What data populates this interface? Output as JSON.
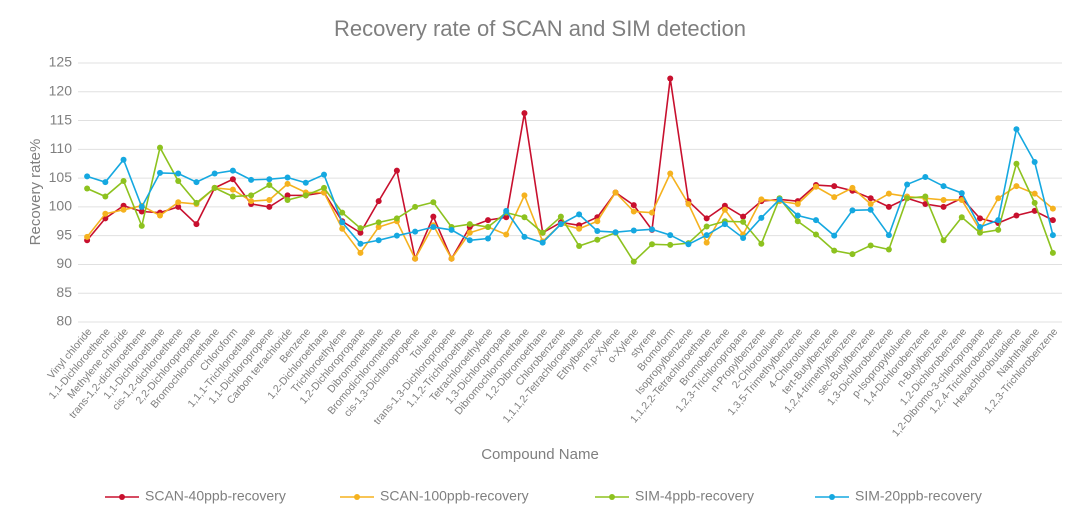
{
  "chart_data": {
    "type": "line",
    "title": "Recovery rate of SCAN and SIM detection",
    "x_label": "Compound Name",
    "y_label": "Recovery rate%",
    "categories": [
      "Vinyl chloride",
      "1,1-Dichloroethene",
      "Methylene chloride",
      "trans-1,2-dichloroethene",
      "1,1-Dichloroethane",
      "cis-1,2-dichloroethene",
      "2,2-Dichloropropane",
      "Bromochloromethane",
      "Chloroform",
      "1,1,1-Trichloroethane",
      "1,1-Dichloropropene",
      "Carbon tetrachloride",
      "Benzene",
      "1,2-Dichloroethane",
      "Trichloroethylene",
      "1,2-Dichloropropane",
      "Dibromomethane",
      "Bromodichloromethane",
      "cis-1,3-Dichloropropene",
      "Toluene",
      "trans-1,3-Dichloropropene",
      "1,1,2-Trichloroethane",
      "Tetrachloroethylene",
      "1,3-Dichloropropane",
      "Dibromochloromethane",
      "1,2-Dibromoethane",
      "Chlorobenzene",
      "1,1,1,2-Tetrachloroethane",
      "Ethylbenzene",
      "m,p-Xylene",
      "o-Xylene",
      "styrene",
      "Bromoform",
      "Isopropylbenzene",
      "1,1,2,2-Tetrachloroethane",
      "Bromobenzene",
      "1,2,3-Trichloropropane",
      "n-Propylbenzene",
      "2-Chlorotoluene",
      "1,3,5-Trimethylbenzene",
      "4-Chlorotoluene",
      "tert-Butylbenzene",
      "1,2,4-trimethylbenzene",
      "sec-Butylbenzene",
      "1,3-Dichlorobenzene",
      "p-Isopropyltoluene",
      "1,4-Dichlorobenzene",
      "n-Butylbenzene",
      "1,2-Dichlorobenzene",
      "1,2-Dibromo-3-chloropropane",
      "1,2,4-Trichlorobenzene",
      "Hexachlorobutadiene",
      "Naphthalene",
      "1,2,3-Trichlorobenzene"
    ],
    "series": [
      {
        "name": "SCAN-40ppb-recovery",
        "color": "#c8102e",
        "values": [
          94.2,
          98,
          100.2,
          99.2,
          99,
          100,
          97,
          103.3,
          104.8,
          100.5,
          100,
          102,
          102,
          102.5,
          97.5,
          95.5,
          101,
          106.3,
          91,
          98.3,
          91,
          96.5,
          97.7,
          98.2,
          116.3,
          95.5,
          97.3,
          96.8,
          98.2,
          102.5,
          100.3,
          96,
          122.3,
          101,
          98,
          100.2,
          98.3,
          101,
          101.3,
          101,
          103.8,
          103.6,
          102.8,
          101.5,
          100,
          101.5,
          100.5,
          100,
          101.5,
          98,
          97.2,
          98.5,
          99.3,
          97.7
        ]
      },
      {
        "name": "SCAN-100ppb-recovery",
        "color": "#f5b21f",
        "values": [
          94.8,
          98.8,
          99.5,
          100.2,
          98.5,
          100.8,
          100.5,
          103.3,
          103,
          101,
          101.2,
          104,
          102.5,
          102.5,
          96.2,
          92,
          96.5,
          97.5,
          91,
          96.8,
          91,
          95.5,
          96.5,
          95.2,
          102,
          94,
          97,
          96.2,
          97.5,
          102.5,
          99.2,
          99,
          105.8,
          100.5,
          93.8,
          99.5,
          95.2,
          101.3,
          101,
          100.5,
          103.5,
          101.7,
          103.3,
          100.5,
          102.3,
          101.8,
          101.5,
          101.2,
          101.2,
          96,
          101.5,
          103.6,
          102.3,
          99.7
        ]
      },
      {
        "name": "SIM-4ppb-recovery",
        "color": "#8dc21f",
        "values": [
          103.2,
          101.8,
          104.5,
          96.7,
          110.3,
          104.5,
          100.7,
          103.3,
          101.8,
          102,
          103.8,
          101.2,
          102,
          103.3,
          99,
          96.3,
          97.3,
          98,
          100,
          100.8,
          96.5,
          97,
          96.5,
          99,
          98.2,
          95.5,
          98.3,
          93.2,
          94.3,
          95.5,
          90.5,
          93.5,
          93.4,
          93.7,
          96.6,
          97.5,
          97.4,
          93.6,
          101.5,
          97.5,
          95.2,
          92.4,
          91.8,
          93.3,
          92.6,
          101.5,
          101.8,
          94.2,
          98.2,
          95.5,
          96,
          107.5,
          100.7,
          92
        ]
      },
      {
        "name": "SIM-20ppb-recovery",
        "color": "#15a8e0",
        "values": [
          105.3,
          104.3,
          108.2,
          100,
          105.9,
          105.8,
          104.3,
          105.8,
          106.3,
          104.7,
          104.8,
          105.1,
          104.2,
          105.6,
          97.3,
          93.6,
          94.2,
          95,
          95.7,
          96.5,
          96,
          94.2,
          94.5,
          99.3,
          94.8,
          93.8,
          97,
          98.7,
          95.8,
          95.6,
          95.9,
          96.1,
          95.1,
          93.5,
          95.1,
          97,
          94.6,
          98.1,
          101.3,
          98.5,
          97.7,
          95,
          99.4,
          99.5,
          95.1,
          103.9,
          105.2,
          103.6,
          102.4,
          96.5,
          97.7,
          113.5,
          107.8,
          95.1
        ]
      }
    ],
    "ylim": [
      80,
      125
    ],
    "yticks": [
      80,
      85,
      90,
      95,
      100,
      105,
      110,
      115,
      120,
      125
    ],
    "grid": true,
    "legend": "bottom"
  }
}
